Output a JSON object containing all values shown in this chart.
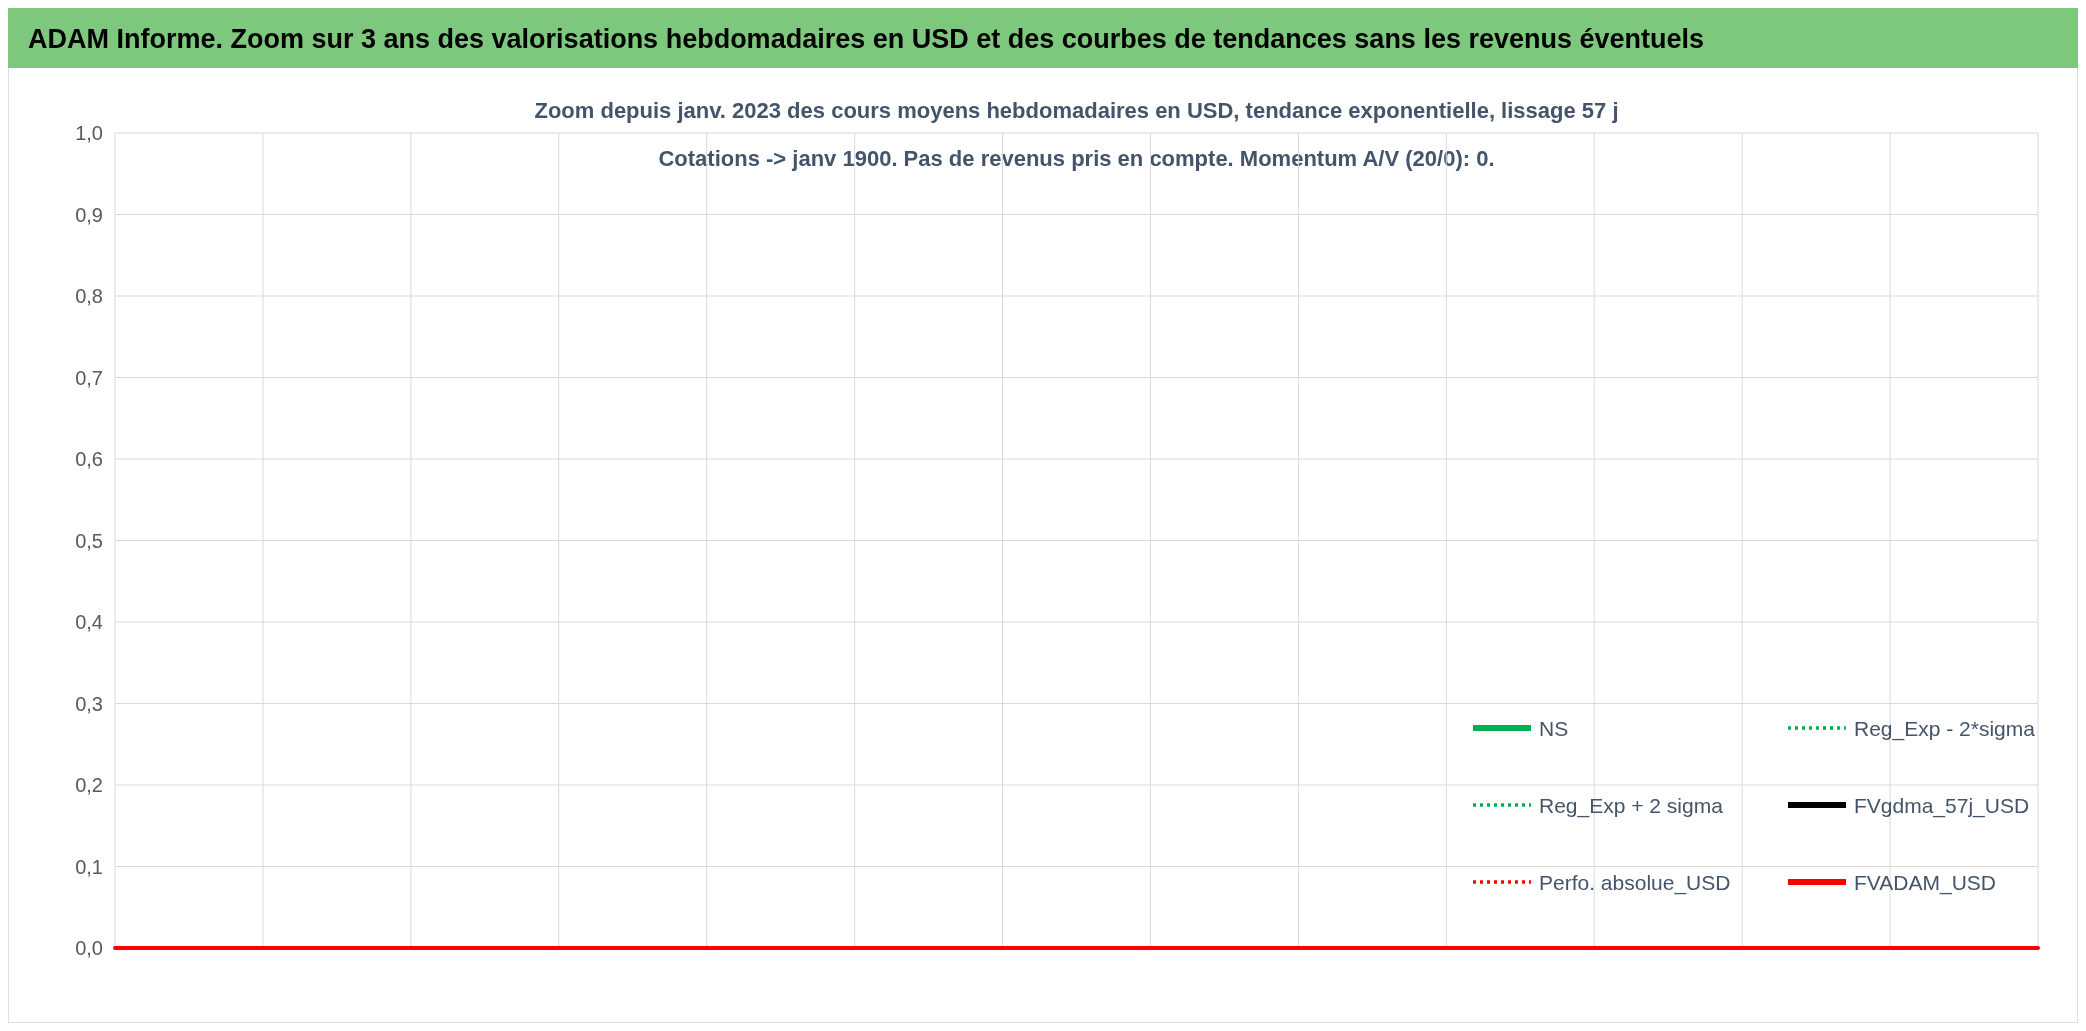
{
  "chart_data": {
    "type": "line",
    "title": "ADAM Informe. Zoom sur 3 ans des valorisations hebdomadaires en USD et des courbes de tendances sans les revenus éventuels",
    "subtitle": "Zoom depuis janv. 2023 des cours moyens hebdomadaires en USD, tendance exponentielle, lissage 57 j",
    "annotations": [
      "Cotations -> janv 1900. Pas de revenus pris en compte. Momentum A/V (20/0): 0."
    ],
    "categories": [
      null,
      null,
      null,
      null,
      null,
      null,
      null,
      null,
      null,
      null,
      null,
      null,
      null,
      null
    ],
    "ylim": [
      0,
      1
    ],
    "yticks": [
      {
        "value": 0,
        "label": "0,0"
      },
      {
        "value": 0.1,
        "label": "0,1"
      },
      {
        "value": 0.2,
        "label": "0,2"
      },
      {
        "value": 0.3,
        "label": "0,3"
      },
      {
        "value": 0.4,
        "label": "0,4"
      },
      {
        "value": 0.5,
        "label": "0,5"
      },
      {
        "value": 0.6,
        "label": "0,6"
      },
      {
        "value": 0.7,
        "label": "0,7"
      },
      {
        "value": 0.8,
        "label": "0,8"
      },
      {
        "value": 0.9,
        "label": "0,9"
      },
      {
        "value": 1,
        "label": "1,0"
      }
    ],
    "grid": true,
    "legend": "bottom right",
    "series": [
      {
        "name": "NS",
        "color": "#00b050",
        "line_style": "solid",
        "values": [
          null,
          null,
          null,
          null,
          null,
          null,
          null,
          null,
          null,
          null,
          null,
          null,
          null,
          null
        ]
      },
      {
        "name": "Reg_Exp - 2*sigma",
        "color": "#00b050",
        "line_style": "dotted",
        "values": [
          null,
          null,
          null,
          null,
          null,
          null,
          null,
          null,
          null,
          null,
          null,
          null,
          null,
          null
        ]
      },
      {
        "name": "Reg_Exp + 2 sigma",
        "color": "#00b050",
        "line_style": "dotted",
        "values": [
          null,
          null,
          null,
          null,
          null,
          null,
          null,
          null,
          null,
          null,
          null,
          null,
          null,
          null
        ]
      },
      {
        "name": "FVgdma_57j_USD",
        "color": "#000000",
        "line_style": "solid",
        "values": [
          null,
          null,
          null,
          null,
          null,
          null,
          null,
          null,
          null,
          null,
          null,
          null,
          null,
          null
        ]
      },
      {
        "name": "Perfo. absolue_USD",
        "color": "#ff0000",
        "line_style": "dotted",
        "values": [
          null,
          null,
          null,
          null,
          null,
          null,
          null,
          null,
          null,
          null,
          null,
          null,
          null,
          null
        ]
      },
      {
        "name": "FVADAM_USD",
        "color": "#ff0000",
        "line_style": "solid",
        "values": [
          0,
          0,
          0,
          0,
          0,
          0,
          0,
          0,
          0,
          0,
          0,
          0,
          0,
          0
        ]
      }
    ]
  }
}
